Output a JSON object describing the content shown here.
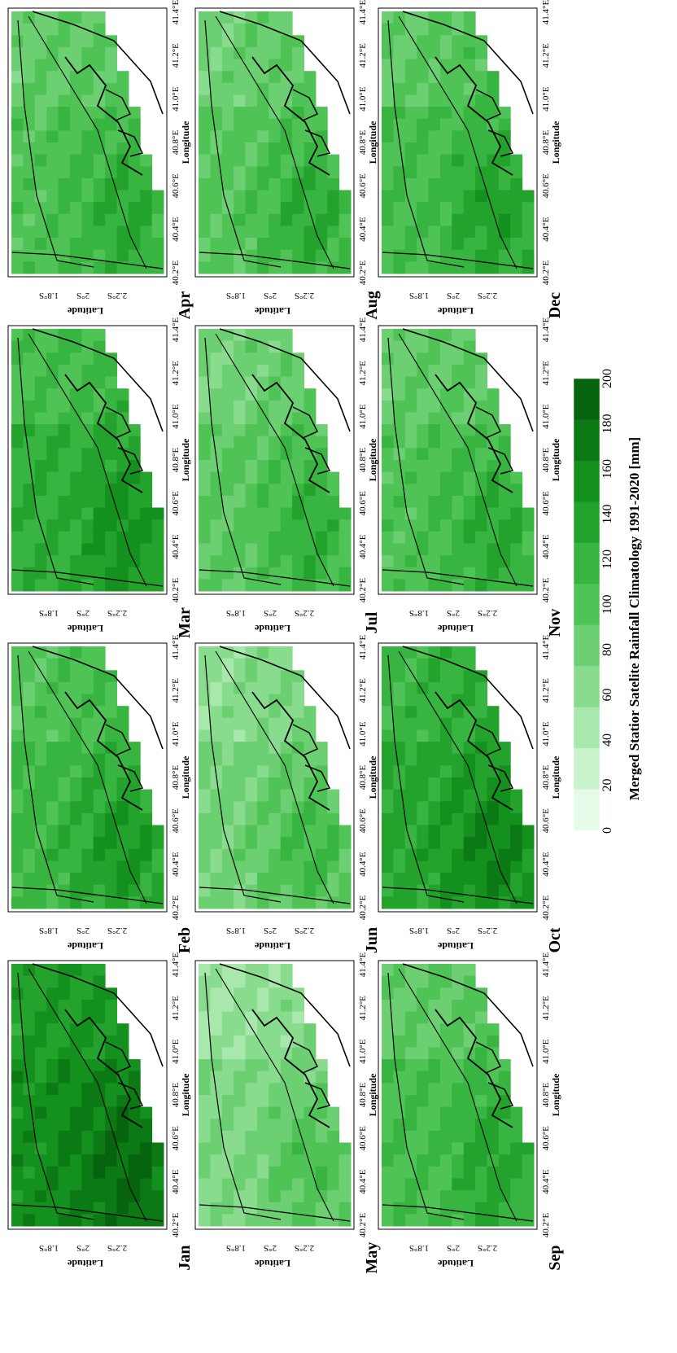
{
  "axes": {
    "x_label": "Longitude",
    "y_label": "Latitude",
    "x_ticks": [
      "40.2°E",
      "40.4°E",
      "40.6°E",
      "40.8°E",
      "41.0°E",
      "41.2°E",
      "41.4°E"
    ],
    "y_ticks": [
      "1.8°S",
      "2°S",
      "2.2°S"
    ]
  },
  "months": [
    {
      "label": "Jan",
      "level": 0.8
    },
    {
      "label": "Feb",
      "level": 0.58
    },
    {
      "label": "Mar",
      "level": 0.62
    },
    {
      "label": "Apr",
      "level": 0.5
    },
    {
      "label": "May",
      "level": 0.34
    },
    {
      "label": "Jun",
      "level": 0.38
    },
    {
      "label": "Jul",
      "level": 0.46
    },
    {
      "label": "Aug",
      "level": 0.48
    },
    {
      "label": "Sep",
      "level": 0.52
    },
    {
      "label": "Oct",
      "level": 0.68
    },
    {
      "label": "Nov",
      "level": 0.5
    },
    {
      "label": "Dec",
      "level": 0.54
    }
  ],
  "colorbar": {
    "title": "Merged Statior Satelite Rainfall Climatology 1991-2020 [mm]",
    "ticks": [
      "0",
      "20",
      "40",
      "60",
      "80",
      "100",
      "120",
      "140",
      "160",
      "180",
      "200"
    ],
    "colors": [
      "#e6fbe7",
      "#c9f3cb",
      "#a9e8ad",
      "#89dc8e",
      "#6cd072",
      "#50c356",
      "#38b440",
      "#23a22c",
      "#13901d",
      "#0b7a14",
      "#06640e"
    ]
  }
}
